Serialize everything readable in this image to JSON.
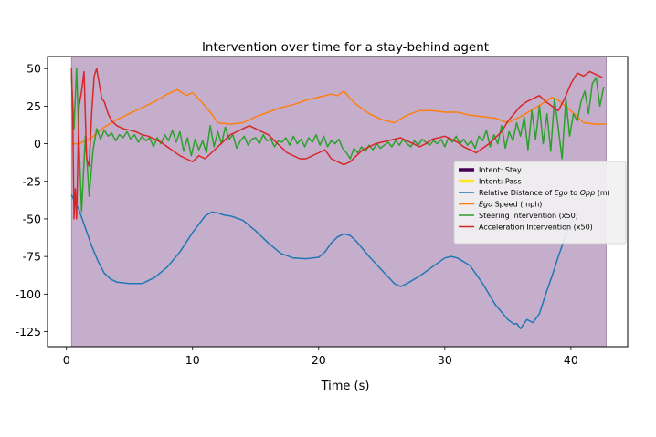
{
  "chart_data": {
    "type": "line",
    "title": "Intervention over time for a stay-behind agent",
    "xlabel": "Time (s)",
    "ylabel": "",
    "xlim": [
      -1.5,
      44.5
    ],
    "ylim": [
      -135,
      58
    ],
    "xticks": [
      0,
      10,
      20,
      30,
      40
    ],
    "yticks": [
      50,
      25,
      0,
      -25,
      -50,
      -75,
      -100,
      -125
    ],
    "ytick_labels": [
      "50",
      "25",
      "0",
      "-25",
      "-50",
      "-75",
      "-100",
      "-125"
    ],
    "shaded_regions": [
      {
        "name": "Intent: Stay",
        "x_start": 0.4,
        "x_end": 42.8,
        "color": "#c5aecb"
      }
    ],
    "legend": {
      "placement": "center-right",
      "entries": [
        {
          "label": "Intent: Stay",
          "color": "#440154",
          "thick": true
        },
        {
          "label": "Intent: Pass",
          "color": "#fde725",
          "thick": true
        },
        {
          "label_parts": [
            "Relative Distance of ",
            "Ego",
            " to ",
            "Opp",
            " (m)"
          ],
          "italic_parts": [
            1,
            3
          ],
          "color": "#1f77b4"
        },
        {
          "label_parts": [
            "Ego",
            " Speed (mph)"
          ],
          "italic_parts": [
            0
          ],
          "color": "#ff7f0e"
        },
        {
          "label_parts": [
            "Steering Intervention (x50)"
          ],
          "italic_parts": [],
          "color": "#2ca02c"
        },
        {
          "label_parts": [
            "Acceleration Intervention (x50)"
          ],
          "italic_parts": [],
          "color": "#d62728"
        }
      ]
    },
    "series": [
      {
        "name": "Relative Distance of Ego to Opp (m)",
        "color": "#1f77b4",
        "x": [
          0.4,
          1,
          1.5,
          2,
          2.5,
          3,
          3.5,
          4,
          4.5,
          5,
          6,
          7,
          8,
          9,
          10,
          11,
          11.5,
          12,
          12.5,
          13,
          14,
          15,
          16,
          17,
          18,
          19,
          20,
          20.5,
          21,
          21.5,
          22,
          22.5,
          23,
          24,
          25,
          26,
          26.5,
          27,
          28,
          29,
          30,
          30.5,
          31,
          32,
          33,
          34,
          35,
          35.5,
          35.7,
          36,
          36.5,
          37,
          37.5,
          38,
          38.5,
          39,
          39.5,
          40,
          40.5
        ],
        "values": [
          -34,
          -44,
          -56,
          -68,
          -78,
          -86,
          -90,
          -92,
          -92.5,
          -93,
          -93,
          -89,
          -82,
          -72,
          -59,
          -48,
          -45.5,
          -46,
          -47.5,
          -48,
          -51,
          -58,
          -66,
          -73,
          -76,
          -76.5,
          -75.5,
          -72,
          -66,
          -62,
          -60,
          -61,
          -65,
          -75,
          -84,
          -93,
          -95,
          -93,
          -88,
          -82,
          -76,
          -75,
          -76,
          -81,
          -93,
          -107,
          -117,
          -120,
          -119.5,
          -123,
          -117,
          -119,
          -113,
          -100,
          -88,
          -75,
          -63,
          -52,
          -45
        ]
      },
      {
        "name": "Ego Speed (mph)",
        "color": "#ff7f0e",
        "x": [
          0.4,
          1,
          2,
          3,
          4,
          5,
          6,
          7,
          8,
          8.8,
          9.5,
          10,
          10.8,
          11.5,
          12,
          13,
          14,
          15,
          16,
          17,
          18,
          19,
          20,
          21,
          21.5,
          22,
          22.5,
          23,
          24,
          25,
          26,
          27,
          28,
          29,
          30,
          31,
          32,
          33,
          34,
          35,
          36,
          37,
          38,
          38.5,
          39,
          40,
          41,
          42,
          42.8
        ],
        "values": [
          0,
          0,
          4,
          11,
          16,
          20,
          24,
          28,
          33,
          36,
          32,
          34,
          27,
          20,
          14,
          13,
          14,
          18,
          21,
          24,
          26,
          29,
          31,
          33,
          32,
          35,
          30,
          26,
          20,
          16,
          14,
          19,
          22,
          22,
          21,
          21,
          19,
          18,
          17,
          14,
          18,
          23,
          28,
          31,
          29,
          22,
          14,
          13,
          13
        ]
      },
      {
        "name": "Steering Intervention (x50)",
        "color": "#2ca02c",
        "x": [
          0.4,
          0.6,
          0.8,
          1.0,
          1.2,
          1.5,
          1.8,
          2.1,
          2.4,
          2.7,
          3,
          3.3,
          3.6,
          3.9,
          4.2,
          4.5,
          4.8,
          5.1,
          5.4,
          5.7,
          6,
          6.3,
          6.6,
          6.9,
          7.2,
          7.5,
          7.8,
          8.1,
          8.4,
          8.7,
          9,
          9.3,
          9.6,
          9.9,
          10.2,
          10.5,
          10.8,
          11.1,
          11.4,
          11.7,
          12,
          12.3,
          12.6,
          12.9,
          13.2,
          13.5,
          13.8,
          14.1,
          14.4,
          14.7,
          15,
          15.3,
          15.6,
          15.9,
          16.2,
          16.5,
          16.8,
          17.1,
          17.4,
          17.7,
          18,
          18.3,
          18.6,
          18.9,
          19.2,
          19.5,
          19.8,
          20.1,
          20.4,
          20.7,
          21,
          21.3,
          21.6,
          21.9,
          22.2,
          22.5,
          22.8,
          23.1,
          23.4,
          23.7,
          24,
          24.3,
          24.6,
          24.9,
          25.2,
          25.5,
          25.8,
          26.1,
          26.4,
          26.7,
          27,
          27.3,
          27.6,
          27.9,
          28.2,
          28.5,
          28.8,
          29.1,
          29.4,
          29.7,
          30,
          30.3,
          30.6,
          30.9,
          31.2,
          31.5,
          31.8,
          32.1,
          32.4,
          32.7,
          33,
          33.3,
          33.6,
          33.9,
          34.2,
          34.5,
          34.8,
          35.1,
          35.4,
          35.7,
          36,
          36.3,
          36.6,
          36.9,
          37.2,
          37.5,
          37.8,
          38.1,
          38.4,
          38.7,
          39,
          39.3,
          39.6,
          39.9,
          40.2,
          40.5,
          40.8,
          41.1,
          41.4,
          41.7,
          42,
          42.3,
          42.6
        ],
        "values": [
          45,
          10,
          50,
          2,
          -45,
          5,
          -35,
          -5,
          10,
          3,
          9,
          5,
          7,
          2,
          6,
          4,
          8,
          3,
          6,
          1,
          5,
          2,
          4,
          -2,
          4,
          0,
          6,
          2,
          9,
          1,
          8,
          -5,
          4,
          -8,
          3,
          -4,
          2,
          -6,
          12,
          -2,
          8,
          0,
          11,
          3,
          6,
          -3,
          2,
          5,
          -1,
          3,
          4,
          0,
          6,
          2,
          3,
          -2,
          2,
          1,
          4,
          -1,
          5,
          0,
          3,
          -2,
          4,
          1,
          6,
          -1,
          5,
          -2,
          2,
          0,
          3,
          -3,
          -6,
          -10,
          -3,
          -6,
          -2,
          -5,
          -1,
          -4,
          0,
          -3,
          -1,
          1,
          -2,
          2,
          -1,
          3,
          0,
          -2,
          2,
          -1,
          3,
          1,
          -1,
          2,
          0,
          3,
          -2,
          4,
          1,
          5,
          0,
          3,
          -1,
          2,
          -3,
          5,
          2,
          9,
          -2,
          6,
          0,
          12,
          -3,
          8,
          2,
          14,
          5,
          18,
          -4,
          22,
          3,
          25,
          0,
          20,
          -5,
          30,
          10,
          -10,
          30,
          5,
          20,
          15,
          28,
          35,
          20,
          40,
          44,
          25,
          38
        ]
      },
      {
        "name": "Acceleration Intervention (x50)",
        "color": "#d62728",
        "x": [
          0.4,
          0.5,
          0.6,
          0.7,
          0.8,
          1.0,
          1.2,
          1.4,
          1.6,
          1.8,
          2.0,
          2.2,
          2.4,
          2.6,
          2.8,
          3.0,
          3.3,
          3.6,
          4,
          4.5,
          5,
          5.5,
          6,
          6.5,
          7,
          7.5,
          8,
          8.5,
          9,
          9.5,
          10,
          10.5,
          11,
          11.5,
          12,
          12.5,
          13,
          13.5,
          14,
          14.5,
          15,
          15.5,
          16,
          16.5,
          17,
          17.5,
          18,
          18.5,
          19,
          19.5,
          20,
          20.5,
          21,
          21.5,
          22,
          22.5,
          23,
          23.5,
          24,
          24.5,
          25,
          25.5,
          26,
          26.5,
          27,
          27.5,
          28,
          28.5,
          29,
          29.5,
          30,
          30.5,
          31,
          31.5,
          32,
          32.5,
          33,
          33.5,
          34,
          34.5,
          35,
          35.5,
          36,
          36.5,
          37,
          37.5,
          38,
          38.5,
          39,
          39.5,
          40,
          40.5,
          41,
          41.5,
          42,
          42.5
        ],
        "values": [
          50,
          20,
          -50,
          -30,
          -50,
          25,
          35,
          48,
          -10,
          -15,
          20,
          45,
          50,
          40,
          30,
          28,
          20,
          15,
          12,
          10,
          9,
          8,
          6,
          5,
          3,
          1,
          -2,
          -5,
          -8,
          -10,
          -12,
          -8,
          -10,
          -6,
          -2,
          2,
          6,
          8,
          10,
          12,
          10,
          8,
          6,
          2,
          -2,
          -6,
          -8,
          -10,
          -10,
          -8,
          -6,
          -4,
          -10,
          -12,
          -14,
          -12,
          -8,
          -4,
          -2,
          0,
          1,
          2,
          3,
          4,
          2,
          0,
          -2,
          0,
          3,
          4,
          5,
          3,
          1,
          -2,
          -4,
          -6,
          -3,
          0,
          4,
          8,
          15,
          20,
          25,
          28,
          30,
          32,
          28,
          25,
          22,
          30,
          40,
          47,
          45,
          48,
          46,
          44
        ]
      }
    ]
  }
}
